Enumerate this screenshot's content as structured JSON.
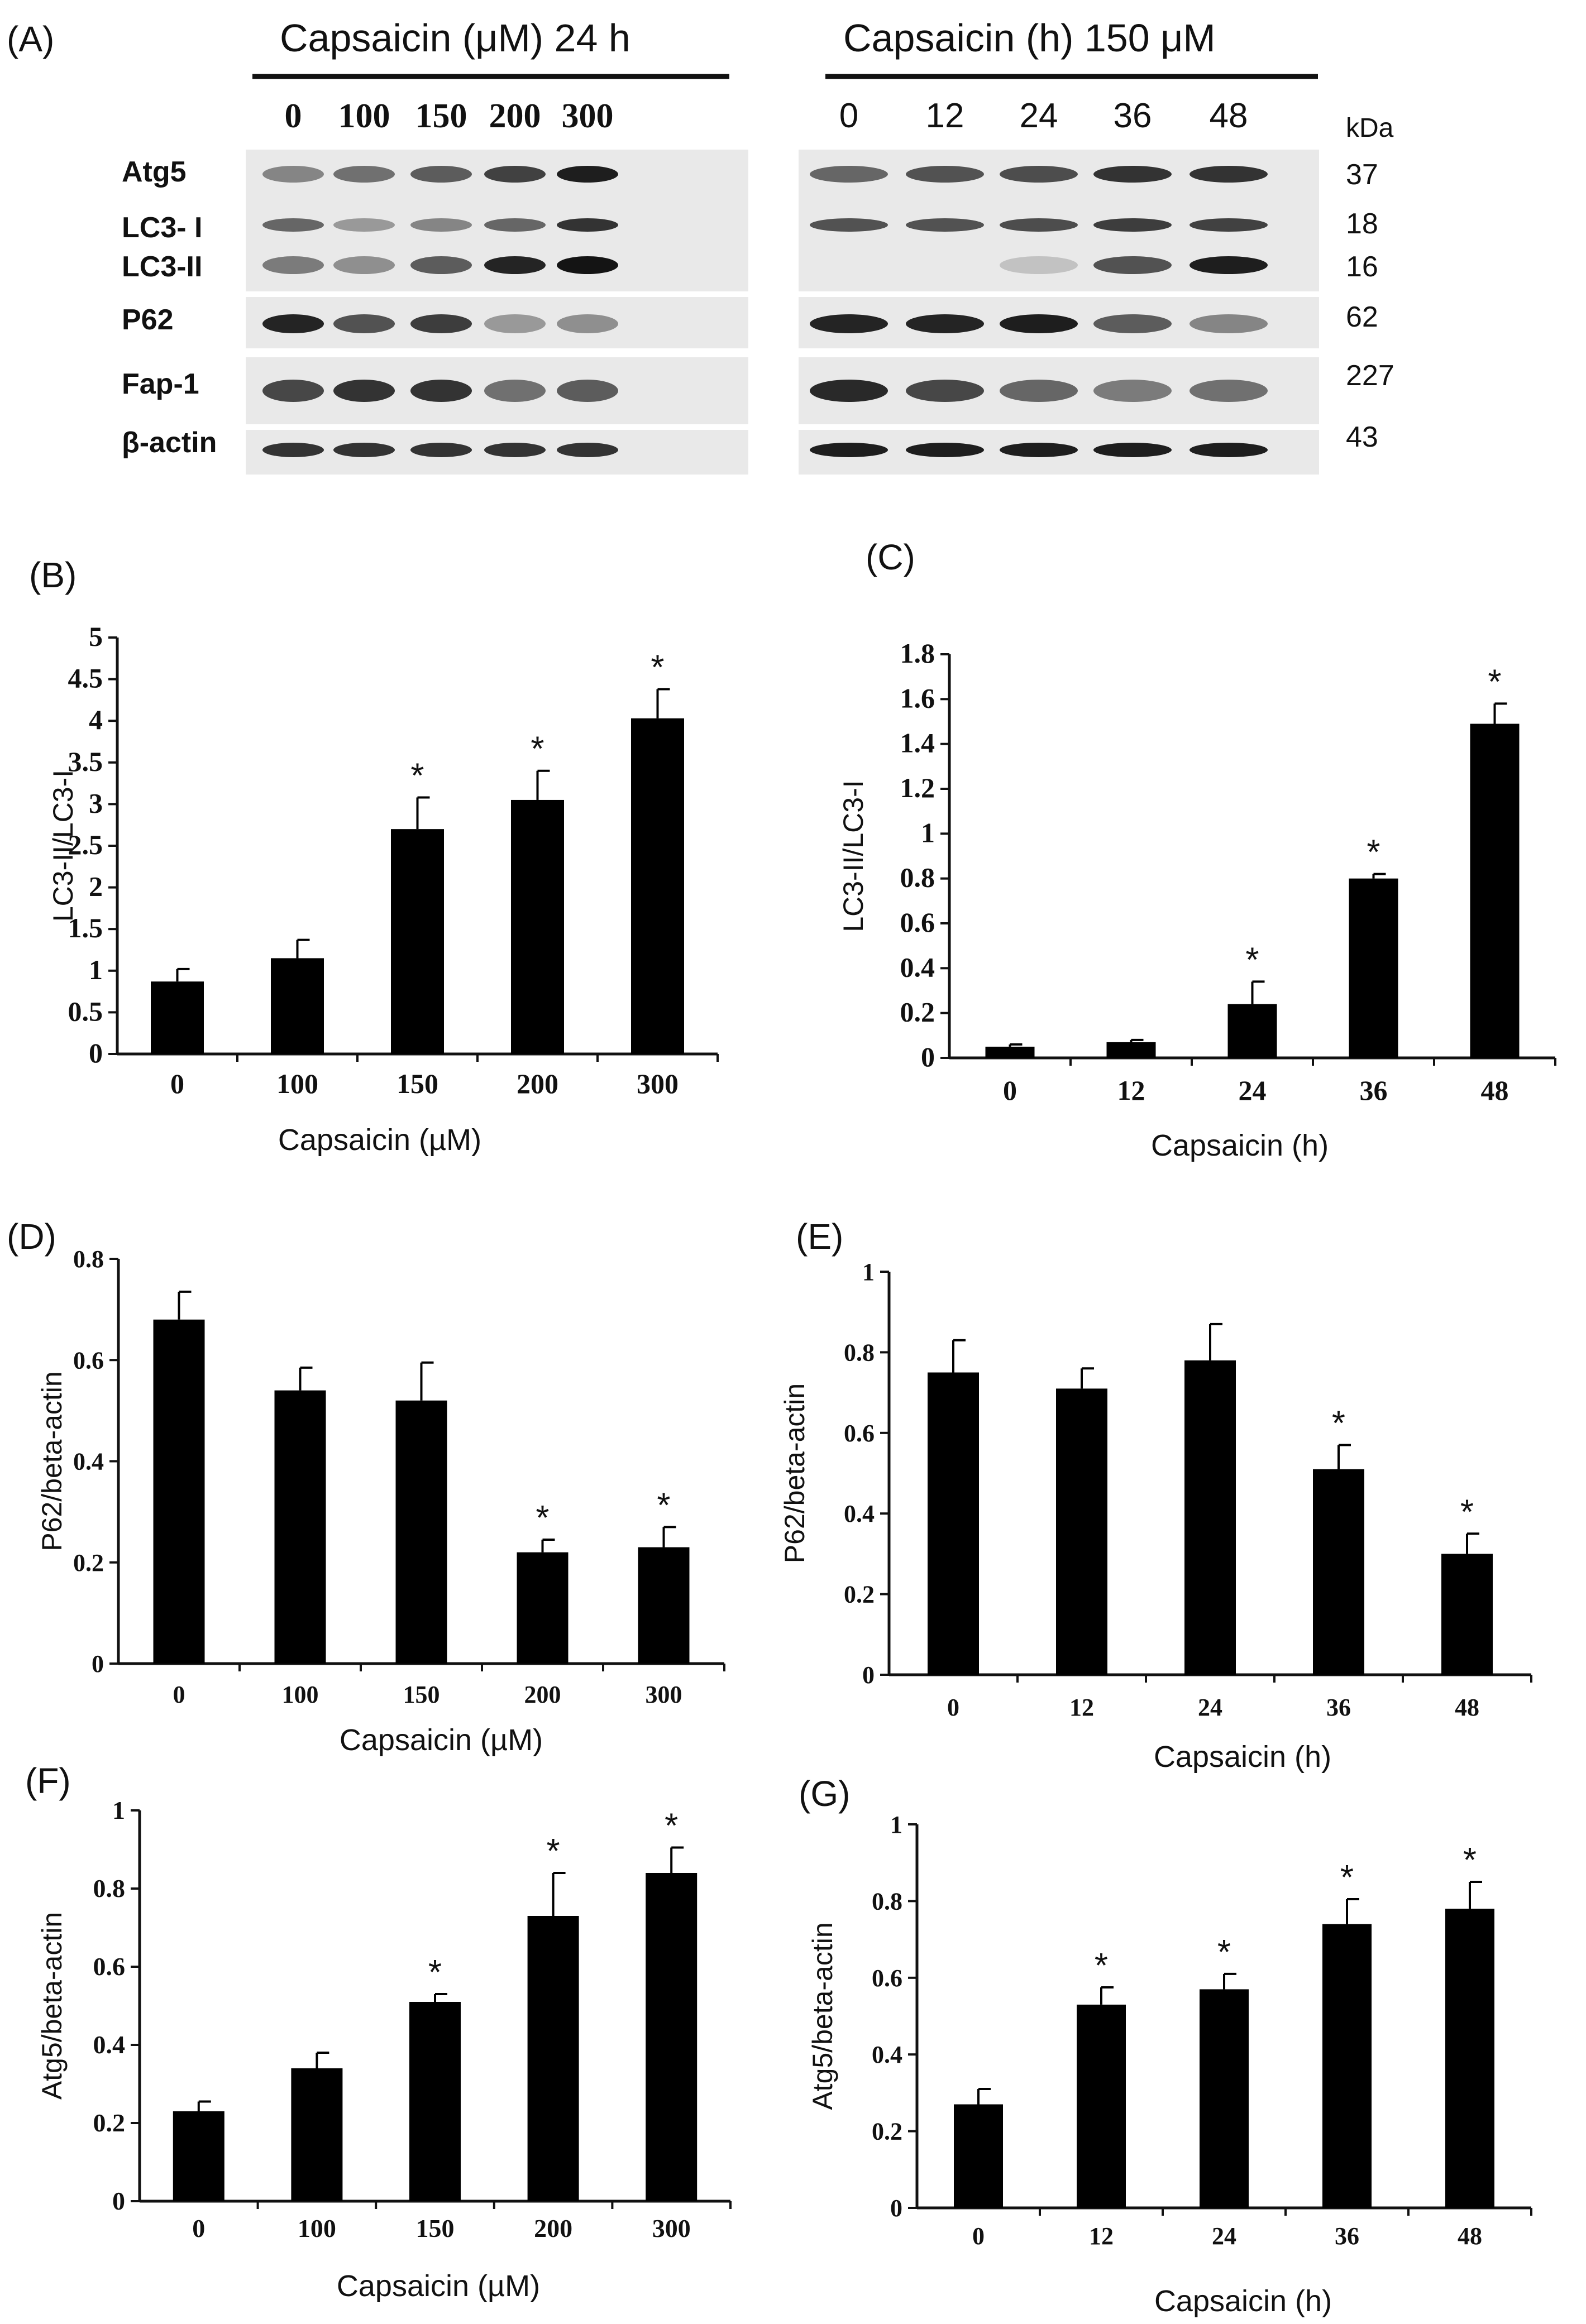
{
  "western_blot": {
    "panel_label": "(A)",
    "left_header": "Capsaicin (μM)  24 h",
    "right_header": "Capsaicin (h)  150 μM",
    "kda_label": "kDa",
    "left_lanes": [
      "0",
      "100",
      "150",
      "200",
      "300"
    ],
    "right_lanes": [
      "0",
      "12",
      "24",
      "36",
      "48"
    ],
    "rows": [
      {
        "label": "Atg5",
        "kda": [
          "37"
        ]
      },
      {
        "label": "LC3- I",
        "kda": [
          "18"
        ]
      },
      {
        "label": "LC3-II",
        "kda": [
          "16"
        ]
      },
      {
        "label": "P62",
        "kda": [
          "62"
        ]
      },
      {
        "label": "Fap-1",
        "kda": [
          "227"
        ]
      },
      {
        "label": "β-actin",
        "kda": [
          "43"
        ]
      }
    ],
    "band_intensity": {
      "atg5_left": [
        0.45,
        0.55,
        0.65,
        0.78,
        0.95
      ],
      "atg5_right": [
        0.6,
        0.7,
        0.72,
        0.85,
        0.85
      ],
      "lc3i_left": [
        0.6,
        0.35,
        0.45,
        0.6,
        0.85
      ],
      "lc3i_right": [
        0.7,
        0.7,
        0.72,
        0.8,
        0.78
      ],
      "lc3ii_left": [
        0.5,
        0.4,
        0.65,
        0.92,
        1.0
      ],
      "lc3ii_right": [
        0.0,
        0.0,
        0.15,
        0.7,
        0.95
      ],
      "p62_left": [
        0.92,
        0.7,
        0.8,
        0.35,
        0.4
      ],
      "p62_right": [
        0.92,
        0.92,
        0.95,
        0.65,
        0.45
      ],
      "fap_left": [
        0.75,
        0.85,
        0.85,
        0.55,
        0.65
      ],
      "fap_right": [
        0.9,
        0.75,
        0.6,
        0.5,
        0.55
      ],
      "actin_left": [
        0.85,
        0.85,
        0.85,
        0.85,
        0.85
      ],
      "actin_right": [
        0.95,
        0.95,
        0.95,
        0.95,
        0.95
      ]
    }
  },
  "chart_data": [
    {
      "id": "B",
      "panel_label": "(B)",
      "type": "bar",
      "categories": [
        "0",
        "100",
        "150",
        "200",
        "300"
      ],
      "values": [
        0.87,
        1.15,
        2.7,
        3.05,
        4.03
      ],
      "errors": [
        0.15,
        0.22,
        0.38,
        0.35,
        0.35
      ],
      "significant": [
        false,
        false,
        true,
        true,
        true
      ],
      "sig_marker": "*",
      "ylabel": "LC3-II/LC3-I",
      "xlabel": "Capsaicin (µM)",
      "ylim": [
        0,
        5
      ],
      "yticks": [
        "0",
        "0.5",
        "1",
        "1.5",
        "2",
        "2.5",
        "3",
        "3.5",
        "4",
        "4.5",
        "5"
      ]
    },
    {
      "id": "C",
      "panel_label": "(C)",
      "type": "bar",
      "categories": [
        "0",
        "12",
        "24",
        "36",
        "48"
      ],
      "values": [
        0.05,
        0.07,
        0.24,
        0.8,
        1.49
      ],
      "errors": [
        0.01,
        0.01,
        0.1,
        0.02,
        0.09
      ],
      "significant": [
        false,
        false,
        true,
        true,
        true
      ],
      "sig_marker": "*",
      "ylabel": "LC3-II/LC3-I",
      "xlabel": "Capsaicin  (h)",
      "ylim": [
        0,
        1.8
      ],
      "yticks": [
        "0",
        "0.2",
        "0.4",
        "0.6",
        "0.8",
        "1",
        "1.2",
        "1.4",
        "1.6",
        "1.8"
      ]
    },
    {
      "id": "D",
      "panel_label": "(D)",
      "type": "bar",
      "categories": [
        "0",
        "100",
        "150",
        "200",
        "300"
      ],
      "values": [
        0.68,
        0.54,
        0.52,
        0.22,
        0.23
      ],
      "errors": [
        0.055,
        0.045,
        0.075,
        0.025,
        0.04
      ],
      "significant": [
        false,
        false,
        false,
        true,
        true
      ],
      "sig_marker": "*",
      "ylabel": "P62/beta-actin",
      "xlabel": "Capsaicin (µM)",
      "ylim": [
        0,
        0.8
      ],
      "yticks": [
        "0",
        "0.2",
        "0.4",
        "0.6",
        "0.8"
      ]
    },
    {
      "id": "E",
      "panel_label": "(E)",
      "type": "bar",
      "categories": [
        "0",
        "12",
        "24",
        "36",
        "48"
      ],
      "values": [
        0.75,
        0.71,
        0.78,
        0.51,
        0.3
      ],
      "errors": [
        0.08,
        0.05,
        0.09,
        0.06,
        0.05
      ],
      "significant": [
        false,
        false,
        false,
        true,
        true
      ],
      "sig_marker": "*",
      "ylabel": "P62/beta-actin",
      "xlabel": "Capsaicin (h)",
      "ylim": [
        0,
        1
      ],
      "yticks": [
        "0",
        "0.2",
        "0.4",
        "0.6",
        "0.8",
        "1"
      ]
    },
    {
      "id": "F",
      "panel_label": "(F)",
      "type": "bar",
      "categories": [
        "0",
        "100",
        "150",
        "200",
        "300"
      ],
      "values": [
        0.23,
        0.34,
        0.51,
        0.73,
        0.84
      ],
      "errors": [
        0.025,
        0.04,
        0.02,
        0.11,
        0.065
      ],
      "significant": [
        false,
        false,
        true,
        true,
        true
      ],
      "sig_marker": "*",
      "ylabel": "Atg5/beta-actin",
      "xlabel": "Capsaicin (µM)",
      "ylim": [
        0,
        1
      ],
      "yticks": [
        "0",
        "0.2",
        "0.4",
        "0.6",
        "0.8",
        "1"
      ]
    },
    {
      "id": "G",
      "panel_label": "(G)",
      "type": "bar",
      "categories": [
        "0",
        "12",
        "24",
        "36",
        "48"
      ],
      "values": [
        0.27,
        0.53,
        0.57,
        0.74,
        0.78
      ],
      "errors": [
        0.04,
        0.045,
        0.04,
        0.065,
        0.07
      ],
      "significant": [
        false,
        true,
        true,
        true,
        true
      ],
      "sig_marker": "*",
      "ylabel": "Atg5/beta-actin",
      "xlabel": "Capsaicin (h)",
      "ylim": [
        0,
        1
      ],
      "yticks": [
        "0",
        "0.2",
        "0.4",
        "0.6",
        "0.8",
        "1"
      ]
    }
  ]
}
